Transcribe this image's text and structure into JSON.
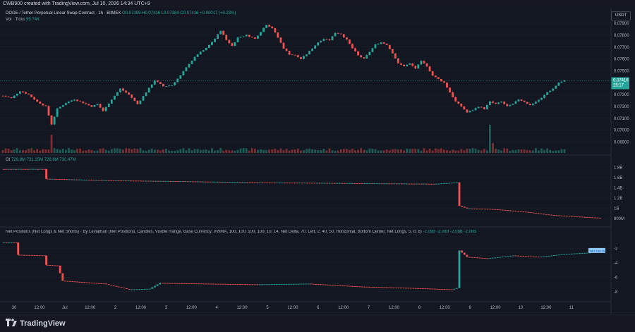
{
  "header": {
    "text": "CWB900 created with TradingView.com, Jul 10, 2026 14:34 UTC+9"
  },
  "legend": {
    "symbol": "DOGE / Tether Perpetual Linear Swap Contract · 1h · BitMEX",
    "ohlc": "O0.07399 H0.07416 L0.07384 C0.07416 +0.00017 (+0.23%)",
    "volume": "Vol · Ticks",
    "volume_value": "95.74K",
    "oi_label": "OI",
    "oi_values": "729.8M 731.15M 729.8M 730.47M",
    "netpos": "Net Positions (Net Longs & Net Shorts) · By Leviathan (Net Positions, Candles, Visible Range, Base Currency, VWMA, 100, 100, 100, 100, 10, 14, Net Delta, 70, Left, 2, 40, 50, Horizontal, Bottom Center, Net Longs, 5, 8, 8)",
    "netpos_values": "-2.09B  -2.08B  -2.08B  -2.08B"
  },
  "currency_button": "USDT",
  "price_badge": {
    "price": "0.07416",
    "countdown": "25:17"
  },
  "net_badge": "NET DELTA",
  "footer": {
    "brand": "TradingView"
  },
  "colors": {
    "up": "#26a69a",
    "down": "#ef5350",
    "bg": "#131722",
    "grid": "#1e222d",
    "text": "#b2b5be"
  },
  "chart_data": [
    {
      "type": "candlestick",
      "title": "DOGE / Tether Perpetual Linear Swap Contract · 1h · BitMEX",
      "y_ticks": [
        "0.07900",
        "0.07800",
        "0.07700",
        "0.07600",
        "0.07500",
        "0.07300",
        "0.07200",
        "0.07100",
        "0.07000",
        "0.06900"
      ],
      "ylim": [
        0.0685,
        0.0793
      ],
      "x_ticks": [
        "30",
        "12:00",
        "Jul",
        "12:00",
        "2",
        "12:00",
        "3",
        "12:00",
        "4",
        "12:00",
        "5",
        "12:00",
        "6",
        "12:00",
        "7",
        "12:00",
        "8",
        "12:00",
        "9",
        "12:00",
        "10",
        "12:00",
        "11"
      ],
      "close_path": [
        [
          0,
          0.0729
        ],
        [
          3,
          0.0727
        ],
        [
          6,
          0.0733
        ],
        [
          9,
          0.073
        ],
        [
          12,
          0.0724
        ],
        [
          15,
          0.072
        ],
        [
          17,
          0.0705
        ],
        [
          19,
          0.0718
        ],
        [
          22,
          0.0723
        ],
        [
          25,
          0.0726
        ],
        [
          28,
          0.0723
        ],
        [
          31,
          0.072
        ],
        [
          33,
          0.0722
        ],
        [
          35,
          0.0716
        ],
        [
          38,
          0.0726
        ],
        [
          41,
          0.0735
        ],
        [
          44,
          0.073
        ],
        [
          47,
          0.0722
        ],
        [
          50,
          0.0732
        ],
        [
          53,
          0.0742
        ],
        [
          56,
          0.0737
        ],
        [
          59,
          0.0738
        ],
        [
          62,
          0.0746
        ],
        [
          65,
          0.0756
        ],
        [
          68,
          0.0764
        ],
        [
          71,
          0.0769
        ],
        [
          74,
          0.0777
        ],
        [
          76,
          0.0784
        ],
        [
          78,
          0.0776
        ],
        [
          80,
          0.0771
        ],
        [
          82,
          0.0778
        ],
        [
          85,
          0.078
        ],
        [
          88,
          0.0777
        ],
        [
          90,
          0.0783
        ],
        [
          92,
          0.0789
        ],
        [
          94,
          0.0786
        ],
        [
          96,
          0.0778
        ],
        [
          98,
          0.0769
        ],
        [
          100,
          0.0764
        ],
        [
          102,
          0.0763
        ],
        [
          104,
          0.076
        ],
        [
          106,
          0.0764
        ],
        [
          108,
          0.0769
        ],
        [
          110,
          0.0774
        ],
        [
          112,
          0.0777
        ],
        [
          114,
          0.0776
        ],
        [
          116,
          0.0782
        ],
        [
          118,
          0.0781
        ],
        [
          120,
          0.0776
        ],
        [
          122,
          0.0769
        ],
        [
          124,
          0.0763
        ],
        [
          126,
          0.076
        ],
        [
          128,
          0.0766
        ],
        [
          130,
          0.0772
        ],
        [
          132,
          0.0774
        ],
        [
          134,
          0.0772
        ],
        [
          136,
          0.0765
        ],
        [
          138,
          0.0756
        ],
        [
          140,
          0.0754
        ],
        [
          142,
          0.0756
        ],
        [
          144,
          0.0752
        ],
        [
          146,
          0.0758
        ],
        [
          148,
          0.0754
        ],
        [
          150,
          0.0746
        ],
        [
          152,
          0.0743
        ],
        [
          154,
          0.074
        ],
        [
          156,
          0.0732
        ],
        [
          158,
          0.0724
        ],
        [
          160,
          0.072
        ],
        [
          162,
          0.0715
        ],
        [
          164,
          0.0717
        ],
        [
          166,
          0.072
        ],
        [
          168,
          0.0718
        ],
        [
          170,
          0.0724
        ],
        [
          172,
          0.0722
        ],
        [
          174,
          0.0724
        ],
        [
          176,
          0.072
        ],
        [
          178,
          0.0722
        ],
        [
          180,
          0.0726
        ],
        [
          182,
          0.0724
        ],
        [
          184,
          0.0721
        ],
        [
          186,
          0.0724
        ],
        [
          188,
          0.0727
        ],
        [
          190,
          0.0732
        ],
        [
          192,
          0.0735
        ],
        [
          194,
          0.074
        ],
        [
          196,
          0.07416
        ]
      ],
      "last_price": 0.07416
    },
    {
      "type": "bar",
      "series_name": "Vol · Ticks",
      "values_pattern": "volume, spikes near Jun30 12:00 and Jul 8 ~18:00"
    },
    {
      "type": "step-line",
      "series_name": "OI",
      "y_ticks": [
        "1.8B",
        "1.6B",
        "1.4B",
        "1.2B",
        "1B",
        "800M"
      ],
      "ylim": [
        0.72,
        1.85
      ],
      "points": [
        [
          0,
          1.77
        ],
        [
          17,
          1.77
        ],
        [
          17,
          1.58
        ],
        [
          40,
          1.55
        ],
        [
          70,
          1.53
        ],
        [
          100,
          1.51
        ],
        [
          140,
          1.49
        ],
        [
          170,
          1.48
        ],
        [
          178,
          1.51
        ],
        [
          179,
          1.05
        ],
        [
          182,
          1.0
        ],
        [
          190,
          0.99
        ],
        [
          196,
          0.97
        ],
        [
          205,
          0.93
        ],
        [
          215,
          0.87
        ],
        [
          225,
          0.84
        ],
        [
          232,
          0.82
        ],
        [
          234,
          0.8
        ]
      ]
    },
    {
      "type": "step-line",
      "series_name": "Net Positions",
      "y_ticks": [
        "-2",
        "-4",
        "-6",
        "-8"
      ],
      "ylim": [
        -9.0,
        -1.0
      ],
      "points": [
        [
          0,
          -1.2
        ],
        [
          6,
          -1.2
        ],
        [
          6,
          -2.9
        ],
        [
          17,
          -3.0
        ],
        [
          17,
          -4.3
        ],
        [
          22,
          -4.4
        ],
        [
          24,
          -6.5
        ],
        [
          40,
          -6.9
        ],
        [
          50,
          -7.7
        ],
        [
          58,
          -7.6
        ],
        [
          62,
          -6.8
        ],
        [
          80,
          -6.9
        ],
        [
          100,
          -7.0
        ],
        [
          120,
          -6.9
        ],
        [
          140,
          -7.3
        ],
        [
          160,
          -7.5
        ],
        [
          176,
          -7.7
        ],
        [
          178,
          -7.5
        ],
        [
          179,
          -2.3
        ],
        [
          182,
          -3.2
        ],
        [
          190,
          -3.4
        ],
        [
          200,
          -3.0
        ],
        [
          210,
          -3.2
        ],
        [
          220,
          -2.8
        ],
        [
          230,
          -2.6
        ],
        [
          234,
          -2.4
        ]
      ]
    }
  ]
}
